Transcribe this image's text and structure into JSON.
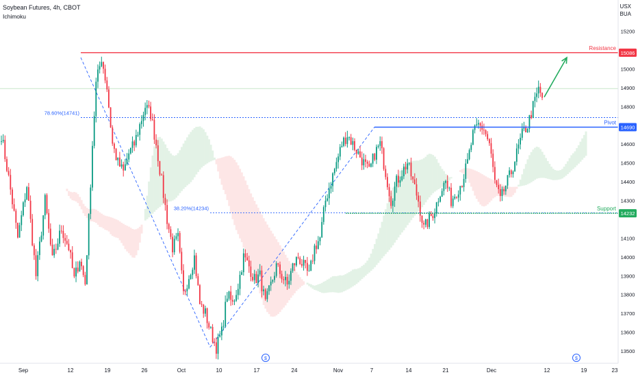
{
  "header": {
    "symbol_line": "Soybean Futures, 4h, CBOT",
    "indicator": "Ichimoku",
    "currency_top": "USX",
    "currency_bottom": "BUA"
  },
  "colors": {
    "bull": "#089981",
    "bear": "#f23645",
    "resistance": "#f23645",
    "pivot": "#2962ff",
    "support": "#22ab5e",
    "fib": "#2962ff",
    "arrow": "#22ab5e",
    "cloud_bull": "#e3f2e6",
    "cloud_bear": "#fde6e6",
    "grid_line": "#c8e6c9"
  },
  "chart_data": {
    "type": "candlestick",
    "title": "Soybean Futures, 4h, CBOT",
    "ylim": [
      13450,
      15200
    ],
    "x_ticks": [
      "Sep",
      "12",
      "19",
      "26",
      "Oct",
      "10",
      "17",
      "24",
      "Nov",
      "7",
      "14",
      "21",
      "Dec",
      "12",
      "19",
      "23"
    ],
    "y_ticks": [
      13500,
      13600,
      13700,
      13800,
      13900,
      14000,
      14100,
      14200,
      14300,
      14400,
      14500,
      14600,
      14700,
      14800,
      14900,
      15000,
      15100,
      15200
    ],
    "levels": [
      {
        "name": "Resistance",
        "value": 15086,
        "label": "15086"
      },
      {
        "name": "Pivot",
        "value": 14690,
        "label": "14690"
      },
      {
        "name": "Support",
        "value": 14232,
        "label": "14232"
      }
    ],
    "fib_levels": [
      {
        "label": "78.60%(14741)",
        "value": 14741
      },
      {
        "label": "38.20%(14234)",
        "value": 14234
      }
    ],
    "last_price_line": 14895,
    "swing_path": [
      {
        "x": "Sep 13",
        "y": 15060
      },
      {
        "x": "Oct 7",
        "y": 13520
      },
      {
        "x": "Nov 7",
        "y": 14690
      }
    ],
    "arrow": {
      "from": 14850,
      "to": 15060
    },
    "keypoints": [
      [
        0,
        14650
      ],
      [
        4,
        14420
      ],
      [
        9,
        14100
      ],
      [
        14,
        14380
      ],
      [
        19,
        13900
      ],
      [
        24,
        14300
      ],
      [
        28,
        13980
      ],
      [
        33,
        14150
      ],
      [
        37,
        14050
      ],
      [
        40,
        13880
      ],
      [
        43,
        13990
      ],
      [
        46,
        13860
      ],
      [
        48,
        14200
      ],
      [
        50,
        14600
      ],
      [
        52,
        14920
      ],
      [
        55,
        15060
      ],
      [
        58,
        14900
      ],
      [
        61,
        14600
      ],
      [
        64,
        14500
      ],
      [
        67,
        14450
      ],
      [
        70,
        14550
      ],
      [
        73,
        14600
      ],
      [
        76,
        14700
      ],
      [
        79,
        14800
      ],
      [
        82,
        14760
      ],
      [
        85,
        14600
      ],
      [
        88,
        14400
      ],
      [
        91,
        14200
      ],
      [
        94,
        14050
      ],
      [
        97,
        14100
      ],
      [
        100,
        13800
      ],
      [
        103,
        13900
      ],
      [
        106,
        14000
      ],
      [
        109,
        13750
      ],
      [
        112,
        13700
      ],
      [
        115,
        13600
      ],
      [
        118,
        13520
      ],
      [
        121,
        13600
      ],
      [
        124,
        13800
      ],
      [
        127,
        13750
      ],
      [
        130,
        13850
      ],
      [
        133,
        14000
      ],
      [
        136,
        13950
      ],
      [
        139,
        13880
      ],
      [
        142,
        13900
      ],
      [
        145,
        13750
      ],
      [
        148,
        13850
      ],
      [
        151,
        13950
      ],
      [
        154,
        13900
      ],
      [
        157,
        13850
      ],
      [
        160,
        13950
      ],
      [
        163,
        14000
      ],
      [
        166,
        13950
      ],
      [
        169,
        13900
      ],
      [
        172,
        14050
      ],
      [
        175,
        14100
      ],
      [
        178,
        14300
      ],
      [
        181,
        14400
      ],
      [
        184,
        14500
      ],
      [
        187,
        14600
      ],
      [
        190,
        14650
      ],
      [
        193,
        14600
      ],
      [
        196,
        14550
      ],
      [
        199,
        14500
      ],
      [
        202,
        14450
      ],
      [
        205,
        14550
      ],
      [
        208,
        14600
      ],
      [
        211,
        14450
      ],
      [
        214,
        14300
      ],
      [
        217,
        14400
      ],
      [
        220,
        14450
      ],
      [
        223,
        14500
      ],
      [
        226,
        14400
      ],
      [
        229,
        14300
      ],
      [
        232,
        14150
      ],
      [
        235,
        14200
      ],
      [
        238,
        14250
      ],
      [
        241,
        14350
      ],
      [
        244,
        14400
      ],
      [
        247,
        14300
      ],
      [
        250,
        14350
      ],
      [
        253,
        14400
      ],
      [
        256,
        14500
      ],
      [
        259,
        14650
      ],
      [
        262,
        14700
      ],
      [
        265,
        14680
      ],
      [
        268,
        14600
      ],
      [
        271,
        14400
      ],
      [
        274,
        14300
      ],
      [
        277,
        14380
      ],
      [
        280,
        14450
      ],
      [
        283,
        14550
      ],
      [
        286,
        14650
      ],
      [
        289,
        14700
      ],
      [
        292,
        14800
      ],
      [
        295,
        14890
      ],
      [
        297,
        14850
      ]
    ]
  }
}
